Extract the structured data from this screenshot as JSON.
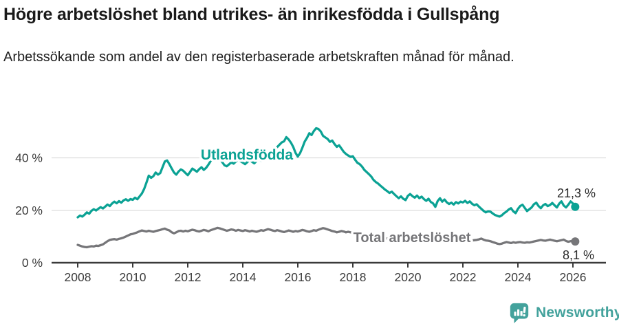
{
  "title": "Högre arbetslöshet bland utrikes- än inrikesfödda i Gullspång",
  "subtitle": "Arbetssökande som andel av den registerbaserade arbetskraften månad för månad.",
  "logo": {
    "name": "Newsworthy",
    "color": "#43a29c",
    "icon": "bar-chart-speech-bubble-icon"
  },
  "colors": {
    "foreign_born_line": "#0ba294",
    "total_line": "#767679",
    "gridline": "#dcdcdc",
    "axis": "#3a3a3a",
    "value_label": "#2b2b2b",
    "tick_label": "#3b3b3b"
  },
  "chart_data": {
    "type": "line",
    "title": "Högre arbetslöshet bland utrikes- än inrikesfödda i Gullspång",
    "subtitle": "Arbetssökande som andel av den registerbaserade arbetskraften månad för månad.",
    "unit": "%",
    "frequency": "monthly",
    "x_start": 2008.0,
    "x_end": 2026.0833,
    "xlabel": "",
    "ylabel": "",
    "ylim": [
      0,
      53
    ],
    "grid": "horizontal",
    "x_ticks": [
      2008,
      2010,
      2012,
      2014,
      2016,
      2018,
      2020,
      2022,
      2024,
      2026
    ],
    "y_ticks": [
      {
        "value": 0,
        "label": "0 %"
      },
      {
        "value": 20,
        "label": "20 %"
      },
      {
        "value": 40,
        "label": "40 %"
      }
    ],
    "series": [
      {
        "name": "Utlandsfödda",
        "color": "#0ba294",
        "end_label": "21,3 %",
        "end_value": 21.3,
        "values": [
          17.3,
          18.0,
          17.6,
          18.3,
          19.2,
          18.7,
          19.8,
          20.4,
          19.9,
          20.6,
          21.2,
          20.7,
          21.4,
          22.2,
          21.6,
          22.6,
          23.3,
          22.7,
          23.5,
          22.9,
          23.8,
          24.2,
          23.6,
          24.3,
          24.0,
          24.8,
          24.2,
          25.3,
          26.4,
          28.2,
          30.6,
          33.2,
          32.4,
          33.0,
          34.4,
          33.6,
          34.2,
          36.4,
          38.6,
          39.0,
          37.6,
          35.9,
          34.4,
          33.6,
          34.8,
          35.6,
          35.1,
          34.2,
          33.4,
          34.6,
          35.9,
          35.3,
          34.7,
          35.7,
          36.4,
          35.4,
          36.2,
          37.4,
          38.8,
          39.6,
          40.3,
          40.6,
          39.7,
          38.4,
          37.2,
          36.8,
          37.5,
          38.3,
          37.8,
          38.6,
          39.2,
          38.7,
          38.2,
          37.6,
          38.4,
          39.1,
          38.5,
          37.9,
          38.8,
          39.5,
          38.9,
          39.6,
          40.2,
          40.8,
          41.5,
          42.8,
          43.4,
          44.1,
          45.0,
          45.9,
          46.3,
          47.9,
          47.0,
          45.8,
          44.2,
          41.9,
          40.5,
          41.8,
          43.9,
          46.2,
          47.6,
          49.4,
          48.7,
          50.2,
          51.3,
          51.0,
          50.1,
          48.4,
          47.8,
          47.2,
          46.1,
          46.6,
          45.3,
          44.2,
          44.8,
          43.6,
          42.3,
          41.5,
          40.9,
          40.4,
          40.6,
          39.3,
          38.1,
          37.6,
          36.7,
          35.4,
          34.6,
          33.8,
          32.9,
          31.6,
          30.8,
          30.2,
          29.4,
          28.7,
          27.9,
          27.3,
          26.6,
          27.1,
          26.2,
          25.4,
          24.6,
          25.3,
          24.4,
          23.9,
          25.5,
          26.2,
          25.4,
          24.8,
          25.6,
          24.6,
          25.2,
          24.3,
          23.6,
          24.4,
          23.2,
          22.6,
          21.3,
          23.5,
          24.6,
          23.3,
          24.1,
          23.0,
          22.4,
          22.9,
          22.2,
          23.1,
          22.6,
          23.3,
          23.0,
          23.6,
          22.8,
          23.4,
          22.5,
          21.9,
          22.3,
          21.4,
          20.6,
          19.8,
          19.2,
          19.6,
          19.5,
          18.8,
          18.2,
          17.9,
          17.6,
          18.1,
          18.9,
          19.5,
          20.3,
          20.8,
          19.6,
          18.9,
          20.5,
          21.6,
          22.1,
          20.9,
          19.7,
          20.4,
          21.1,
          22.3,
          22.9,
          21.6,
          20.8,
          21.9,
          22.4,
          21.6,
          22.0,
          22.8,
          21.9,
          21.1,
          22.5,
          23.4,
          21.8,
          21.1,
          22.1,
          23.4,
          22.6,
          21.3
        ]
      },
      {
        "name": "Total arbetslöshet",
        "color": "#767679",
        "end_label": "8,1 %",
        "end_value": 8.1,
        "values": [
          6.8,
          6.5,
          6.2,
          6.0,
          5.9,
          6.1,
          6.3,
          6.2,
          6.5,
          6.4,
          6.7,
          7.0,
          7.6,
          8.2,
          8.7,
          8.9,
          9.0,
          8.8,
          9.1,
          9.3,
          9.6,
          10.0,
          10.4,
          10.8,
          11.0,
          11.3,
          11.6,
          12.0,
          12.3,
          12.1,
          11.9,
          12.2,
          12.0,
          11.8,
          12.1,
          12.3,
          12.5,
          12.8,
          13.0,
          12.6,
          12.3,
          11.6,
          11.2,
          11.6,
          12.1,
          12.2,
          11.9,
          12.2,
          12.0,
          12.3,
          12.6,
          12.4,
          12.1,
          11.9,
          12.2,
          12.5,
          12.3,
          12.0,
          12.4,
          12.7,
          13.0,
          13.3,
          13.1,
          12.8,
          12.5,
          12.2,
          12.4,
          12.7,
          12.5,
          12.2,
          12.5,
          12.3,
          12.1,
          12.4,
          12.2,
          11.9,
          12.2,
          12.0,
          11.8,
          12.1,
          12.4,
          12.2,
          12.5,
          12.8,
          12.6,
          12.3,
          12.1,
          12.4,
          12.2,
          11.9,
          11.7,
          12.0,
          12.3,
          12.1,
          11.8,
          12.1,
          11.9,
          12.2,
          12.5,
          12.3,
          12.0,
          11.8,
          12.1,
          12.4,
          12.2,
          12.6,
          12.9,
          13.2,
          13.0,
          12.7,
          12.4,
          12.1,
          11.9,
          11.6,
          11.8,
          12.1,
          11.9,
          11.6,
          11.8,
          11.6,
          11.5,
          11.3,
          11.1,
          10.9,
          10.7,
          10.5,
          10.6,
          10.4,
          10.2,
          10.0,
          9.9,
          9.8,
          9.7,
          9.5,
          9.4,
          9.2,
          9.1,
          9.0,
          8.9,
          8.8,
          8.9,
          9.0,
          9.1,
          9.2,
          9.4,
          9.6,
          9.9,
          10.3,
          10.6,
          10.4,
          10.2,
          10.0,
          9.8,
          9.6,
          9.4,
          9.2,
          9.0,
          8.9,
          8.8,
          8.7,
          8.6,
          8.5,
          8.4,
          8.5,
          8.6,
          8.5,
          8.4,
          8.3,
          8.9,
          8.8,
          8.7,
          8.6,
          8.5,
          8.6,
          8.7,
          8.9,
          9.2,
          8.8,
          8.5,
          8.4,
          8.2,
          7.9,
          7.6,
          7.3,
          7.1,
          7.3,
          7.6,
          7.9,
          7.7,
          7.5,
          7.8,
          7.6,
          7.8,
          7.9,
          7.7,
          7.6,
          7.8,
          7.7,
          7.9,
          8.1,
          8.3,
          8.5,
          8.7,
          8.5,
          8.4,
          8.6,
          8.8,
          8.6,
          8.4,
          8.2,
          8.4,
          8.6,
          8.8,
          8.3,
          8.0,
          8.2,
          8.3,
          8.1
        ]
      }
    ],
    "legend_position": "inline-labels"
  }
}
